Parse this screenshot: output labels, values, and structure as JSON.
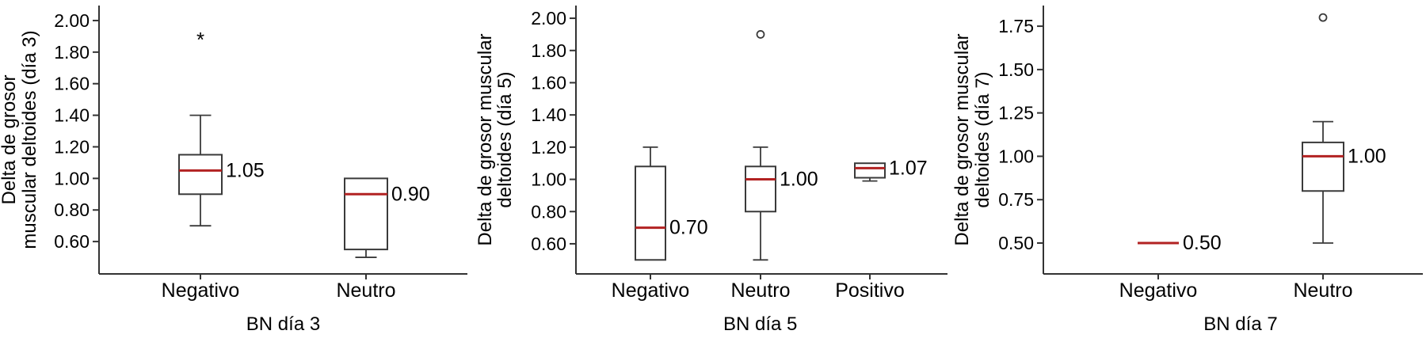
{
  "colors": {
    "median_line": "#b22222",
    "box_border": "#3a3a3a",
    "axis_line": "#333333",
    "text": "#000000",
    "background": "#ffffff"
  },
  "chart_data": [
    {
      "type": "boxplot",
      "panel_id": "dia3",
      "ylabel_lines": [
        "Delta de grosor",
        "muscular deltoides (día 3)"
      ],
      "xlabel": "BN día 3",
      "ytick_labels": [
        "2.00",
        "1.80",
        "1.60",
        "1.40",
        "1.20",
        "1.00",
        "0.80",
        "0.60"
      ],
      "ylim": [
        0.395,
        2.095
      ],
      "grid": false,
      "legend": false,
      "categories": [
        "Negativo",
        "Neutro"
      ],
      "boxes": [
        {
          "category": "Negativo",
          "q1": 0.9,
          "median": 1.05,
          "q3": 1.15,
          "whisker_low": 0.7,
          "whisker_high": 1.4,
          "median_label": "1.05",
          "outliers": [
            {
              "value": 1.9,
              "marker": "asterisk"
            }
          ]
        },
        {
          "category": "Neutro",
          "q1": 0.55,
          "median": 0.9,
          "q3": 1.0,
          "whisker_low": 0.5,
          "whisker_high": null,
          "median_label": "0.90",
          "outliers": []
        }
      ]
    },
    {
      "type": "boxplot",
      "panel_id": "dia5",
      "ylabel_lines": [
        "Delta de grosor muscular",
        "deltoides (día 5)"
      ],
      "xlabel": "BN día 5",
      "ytick_labels": [
        "2.00",
        "1.80",
        "1.60",
        "1.40",
        "1.20",
        "1.00",
        "0.80",
        "0.60"
      ],
      "ylim": [
        0.413,
        2.079
      ],
      "grid": false,
      "legend": false,
      "categories": [
        "Negativo",
        "Neutro",
        "Positivo"
      ],
      "boxes": [
        {
          "category": "Negativo",
          "q1": 0.5,
          "median": 0.7,
          "q3": 1.08,
          "whisker_low": null,
          "whisker_high": 1.2,
          "median_label": "0.70",
          "outliers": []
        },
        {
          "category": "Neutro",
          "q1": 0.8,
          "median": 1.0,
          "q3": 1.08,
          "whisker_low": 0.5,
          "whisker_high": 1.2,
          "median_label": "1.00",
          "outliers": [
            {
              "value": 1.9,
              "marker": "circle"
            }
          ]
        },
        {
          "category": "Positivo",
          "q1": 1.01,
          "median": 1.07,
          "q3": 1.1,
          "whisker_low": 0.99,
          "whisker_high": null,
          "median_label": "1.07",
          "outliers": []
        }
      ]
    },
    {
      "type": "boxplot",
      "panel_id": "dia7",
      "ylabel_lines": [
        "Delta de grosor muscular",
        "deltoides (día 7)"
      ],
      "xlabel": "BN día 7",
      "ytick_labels": [
        "1.75",
        "1.50",
        "1.25",
        "1.00",
        "0.75",
        "0.50"
      ],
      "ylim": [
        0.322,
        1.869
      ],
      "grid": false,
      "legend": false,
      "categories": [
        "Negativo",
        "Neutro"
      ],
      "boxes": [
        {
          "category": "Negativo",
          "q1": 0.5,
          "median": 0.5,
          "q3": 0.5,
          "whisker_low": null,
          "whisker_high": null,
          "median_label": "0.50",
          "outliers": []
        },
        {
          "category": "Neutro",
          "q1": 0.8,
          "median": 1.0,
          "q3": 1.08,
          "whisker_low": 0.5,
          "whisker_high": 1.2,
          "median_label": "1.00",
          "outliers": [
            {
              "value": 1.8,
              "marker": "circle"
            }
          ]
        }
      ]
    }
  ]
}
